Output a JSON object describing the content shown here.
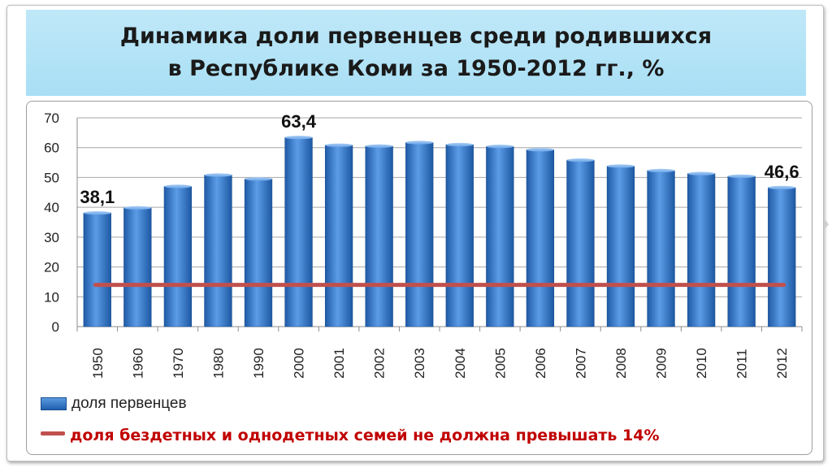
{
  "slide": {
    "title_line1": "Динамика доли первенцев среди родившихся",
    "title_line2": "в Республике Коми за 1950-2012 гг., %"
  },
  "chart_data": {
    "type": "bar",
    "categories": [
      "1950",
      "1960",
      "1970",
      "1980",
      "1990",
      "2000",
      "2001",
      "2002",
      "2003",
      "2004",
      "2005",
      "2006",
      "2007",
      "2008",
      "2009",
      "2010",
      "2011",
      "2012"
    ],
    "series": [
      {
        "name": "доля первенцев",
        "color": "#3a78c8",
        "values": [
          38.1,
          39.8,
          47.0,
          50.8,
          49.5,
          63.4,
          60.8,
          60.5,
          61.7,
          61.0,
          60.4,
          59.3,
          55.8,
          53.8,
          52.3,
          51.3,
          50.4,
          46.6
        ]
      }
    ],
    "reference_line": {
      "name": "доля бездетных и однодетных семей не должна превышать 14%",
      "value": 14,
      "color": "#c0504d"
    },
    "data_labels": [
      {
        "category": "1950",
        "text": "38,1"
      },
      {
        "category": "2000",
        "text": "63,4"
      },
      {
        "category": "2012",
        "text": "46,6"
      }
    ],
    "ylim": [
      0,
      70
    ],
    "yticks": [
      "0",
      "10",
      "20",
      "30",
      "40",
      "50",
      "60",
      "70"
    ],
    "grid": true,
    "legend_position": "bottom-left"
  }
}
